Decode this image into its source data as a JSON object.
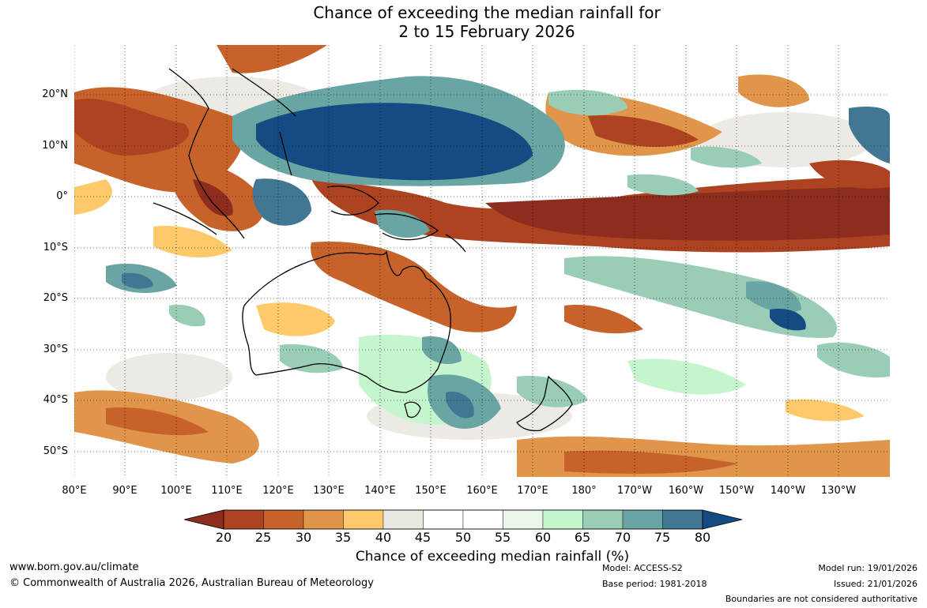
{
  "title": {
    "line1": "Chance of exceeding the median rainfall for",
    "line2": "2 to 15 February 2026"
  },
  "map": {
    "lat_labels": [
      "20°N",
      "10°N",
      "0°",
      "10°S",
      "20°S",
      "30°S",
      "40°S",
      "50°S"
    ],
    "lon_labels": [
      "80°E",
      "90°E",
      "100°E",
      "110°E",
      "120°E",
      "130°E",
      "140°E",
      "150°E",
      "160°E",
      "170°E",
      "180°",
      "170°W",
      "160°W",
      "150°W",
      "140°W",
      "130°W"
    ]
  },
  "legend": {
    "title": "Chance of exceeding median rainfall (%)",
    "ticks": [
      "20",
      "25",
      "30",
      "35",
      "40",
      "45",
      "50",
      "55",
      "60",
      "65",
      "70",
      "75",
      "80"
    ],
    "colors": [
      "#8c2d1e",
      "#ae4322",
      "#c7622a",
      "#e0954a",
      "#fdc96a",
      "#ebe8e2",
      "#ffffff",
      "#ffffff",
      "#eaf7ea",
      "#c4f5cc",
      "#99cdb6",
      "#68a5a3",
      "#427793",
      "#134b82"
    ]
  },
  "footer": {
    "website": "www.bom.gov.au/climate",
    "copyright": "© Commonwealth of Australia 2026, Australian Bureau of Meteorology",
    "model": "Model: ACCESS-S2",
    "base_period": "Base period: 1981-2018",
    "model_run": "Model run: 19/01/2026",
    "issued": "Issued: 21/01/2026",
    "disclaimer": "Boundaries are not considered authoritative"
  }
}
